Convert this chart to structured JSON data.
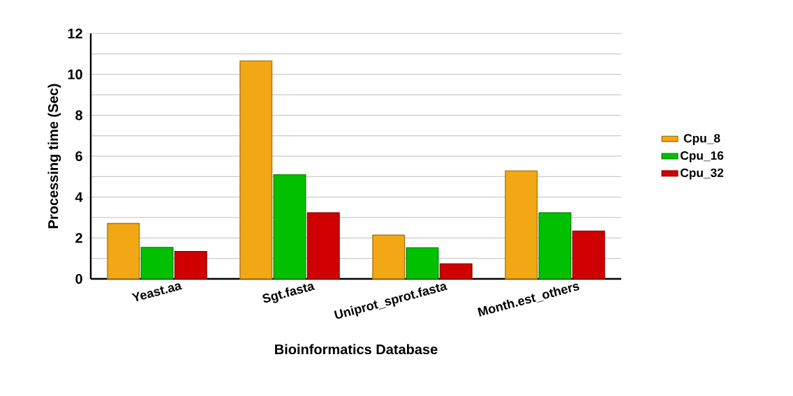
{
  "chart_data": {
    "type": "bar",
    "xlabel": "Bioinformatics Database",
    "ylabel": "Processing time (Sec)",
    "categories": [
      "Yeast.aa",
      "Sgt.fasta",
      "Uniprot_sprot.fasta",
      "Month.est_others"
    ],
    "series": [
      {
        "name": "Cpu_8",
        "color": "#f2a814",
        "values": [
          2.71,
          10.66,
          2.14,
          5.28
        ]
      },
      {
        "name": "Cpu_16",
        "color": "#00c000",
        "values": [
          1.54,
          5.09,
          1.52,
          3.23
        ]
      },
      {
        "name": "Cpu_32",
        "color": "#d00000",
        "values": [
          1.34,
          3.23,
          0.74,
          2.34
        ]
      }
    ],
    "ylim": [
      0,
      12
    ],
    "yticks": [
      0,
      2,
      4,
      6,
      8,
      10,
      12
    ],
    "grid": "y",
    "legend": "right"
  }
}
